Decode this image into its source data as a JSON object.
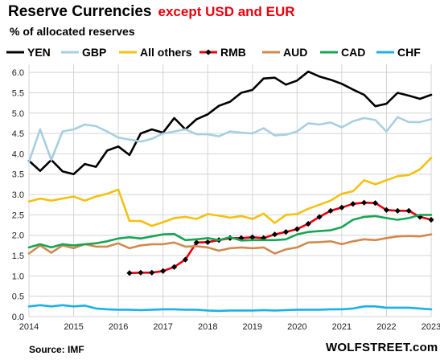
{
  "header": {
    "title_main": "Reserve Currencies",
    "title_highlight": "except USD and EUR",
    "subtitle": "% of allocated reserves"
  },
  "footer": {
    "source": "Source: IMF",
    "brand": "WOLFSTREET.com"
  },
  "chart_data": {
    "type": "line",
    "title": "Reserve Currencies except USD and EUR",
    "subtitle": "% of allocated reserves",
    "xlabel": "",
    "ylabel": "",
    "xlim": [
      2014,
      2023
    ],
    "ylim": [
      0,
      6.2
    ],
    "x_ticks": [
      "2014",
      "2015",
      "2016",
      "2017",
      "2018",
      "2019",
      "2020",
      "2021",
      "2022",
      "2023"
    ],
    "y_ticks": [
      "0.0",
      "0.5",
      "1.0",
      "1.5",
      "2.0",
      "2.5",
      "3.0",
      "3.5",
      "4.0",
      "4.5",
      "5.0",
      "5.5",
      "6.0"
    ],
    "grid": true,
    "legend_position": "top",
    "x": [
      2014.0,
      2014.25,
      2014.5,
      2014.75,
      2015.0,
      2015.25,
      2015.5,
      2015.75,
      2016.0,
      2016.25,
      2016.5,
      2016.75,
      2017.0,
      2017.25,
      2017.5,
      2017.75,
      2018.0,
      2018.25,
      2018.5,
      2018.75,
      2019.0,
      2019.25,
      2019.5,
      2019.75,
      2020.0,
      2020.25,
      2020.5,
      2020.75,
      2021.0,
      2021.25,
      2021.5,
      2021.75,
      2022.0,
      2022.25,
      2022.5,
      2022.75,
      2023.0
    ],
    "series": [
      {
        "name": "YEN",
        "color": "#000000",
        "values": [
          3.83,
          3.58,
          3.85,
          3.57,
          3.5,
          3.75,
          3.68,
          4.08,
          4.18,
          3.97,
          4.5,
          4.6,
          4.52,
          4.88,
          4.6,
          4.85,
          4.97,
          5.18,
          5.28,
          5.5,
          5.57,
          5.85,
          5.87,
          5.7,
          5.8,
          6.02,
          5.9,
          5.82,
          5.72,
          5.58,
          5.45,
          5.17,
          5.23,
          5.5,
          5.43,
          5.35,
          5.45
        ]
      },
      {
        "name": "GBP",
        "color": "#a8cfe0",
        "values": [
          3.8,
          4.6,
          3.85,
          4.55,
          4.6,
          4.72,
          4.68,
          4.55,
          4.4,
          4.35,
          4.3,
          4.37,
          4.5,
          4.55,
          4.6,
          4.48,
          4.48,
          4.43,
          4.55,
          4.52,
          4.5,
          4.63,
          4.45,
          4.47,
          4.55,
          4.75,
          4.72,
          4.77,
          4.65,
          4.8,
          4.88,
          4.83,
          4.55,
          4.9,
          4.78,
          4.78,
          4.85
        ]
      },
      {
        "name": "All others",
        "color": "#f5c012",
        "values": [
          2.83,
          2.9,
          2.85,
          2.9,
          2.95,
          2.85,
          2.95,
          3.02,
          3.12,
          2.35,
          2.35,
          2.23,
          2.32,
          2.42,
          2.45,
          2.4,
          2.52,
          2.48,
          2.43,
          2.47,
          2.4,
          2.53,
          2.3,
          2.5,
          2.52,
          2.65,
          2.75,
          2.85,
          3.02,
          3.08,
          3.35,
          3.25,
          3.35,
          3.45,
          3.48,
          3.62,
          3.9
        ]
      },
      {
        "name": "RMB",
        "color": "#e8000b",
        "values": [
          null,
          null,
          null,
          null,
          null,
          null,
          null,
          null,
          null,
          1.07,
          1.08,
          1.08,
          1.12,
          1.22,
          1.4,
          1.82,
          1.83,
          1.88,
          1.93,
          1.93,
          1.95,
          1.93,
          2.02,
          2.08,
          2.15,
          2.28,
          2.45,
          2.6,
          2.68,
          2.77,
          2.8,
          2.79,
          2.62,
          2.6,
          2.6,
          2.45,
          2.38
        ]
      },
      {
        "name": "AUD",
        "color": "#d08a50",
        "values": [
          1.55,
          1.75,
          1.57,
          1.75,
          1.68,
          1.78,
          1.72,
          1.72,
          1.8,
          1.68,
          1.75,
          1.78,
          1.78,
          1.82,
          1.72,
          1.73,
          1.7,
          1.62,
          1.68,
          1.7,
          1.68,
          1.7,
          1.55,
          1.65,
          1.7,
          1.82,
          1.83,
          1.85,
          1.78,
          1.85,
          1.9,
          1.88,
          1.93,
          1.97,
          1.98,
          1.97,
          2.02
        ]
      },
      {
        "name": "CAD",
        "color": "#18a555",
        "values": [
          1.7,
          1.78,
          1.7,
          1.78,
          1.75,
          1.78,
          1.8,
          1.85,
          1.92,
          1.95,
          1.92,
          1.97,
          2.02,
          2.03,
          1.88,
          1.9,
          1.93,
          1.88,
          1.95,
          1.87,
          1.88,
          1.88,
          1.88,
          1.9,
          2.02,
          2.08,
          2.1,
          2.12,
          2.2,
          2.38,
          2.45,
          2.47,
          2.42,
          2.38,
          2.42,
          2.5,
          2.5
        ]
      },
      {
        "name": "CHF",
        "color": "#1ab0e8",
        "values": [
          0.25,
          0.28,
          0.25,
          0.28,
          0.25,
          0.27,
          0.2,
          0.18,
          0.17,
          0.17,
          0.16,
          0.17,
          0.18,
          0.18,
          0.17,
          0.17,
          0.15,
          0.14,
          0.15,
          0.15,
          0.15,
          0.16,
          0.15,
          0.16,
          0.17,
          0.17,
          0.17,
          0.18,
          0.18,
          0.2,
          0.25,
          0.25,
          0.22,
          0.22,
          0.22,
          0.2,
          0.18
        ]
      }
    ]
  }
}
